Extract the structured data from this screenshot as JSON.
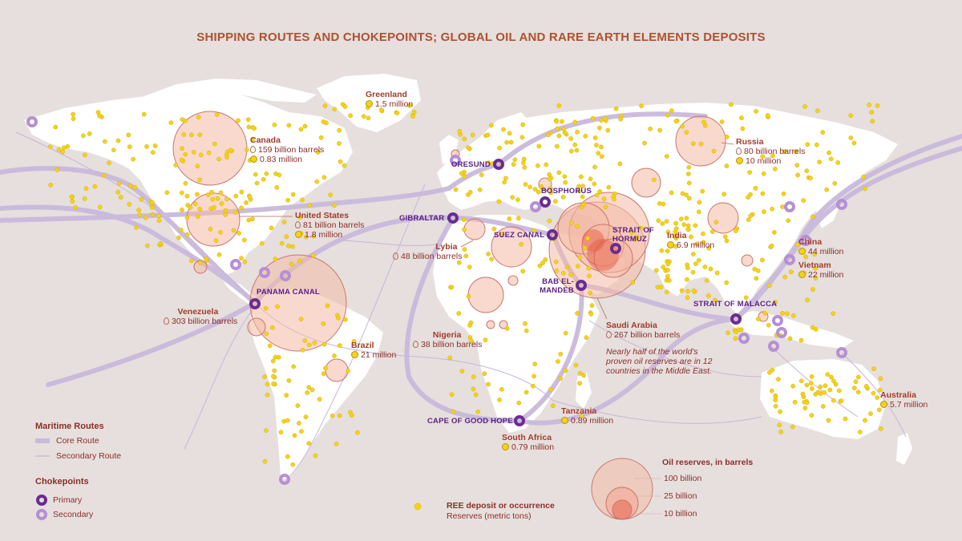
{
  "title": "SHIPPING ROUTES AND CHOKEPOINTS; GLOBAL OIL AND RARE EARTH ELEMENTS DEPOSITS",
  "colors": {
    "background": "#e6dfdd",
    "land": "#ffffff",
    "route": "#c9b9dc",
    "primary_chokepoint": "#6a2c91",
    "secondary_chokepoint": "#b68fd4",
    "oil_bubble": "#f4b9a6",
    "ree_dot": "#f5d21a",
    "label": "#a33c2c"
  },
  "countries": [
    {
      "id": "canada",
      "name": "Canada",
      "oil": "159 billion barrels",
      "ree": "0.83 million"
    },
    {
      "id": "greenland",
      "name": "Greenland",
      "ree": "1.5 million"
    },
    {
      "id": "russia",
      "name": "Russia",
      "oil": "80 billion barrels",
      "ree": "10 million"
    },
    {
      "id": "usa",
      "name": "United States",
      "oil": "81 billion barrels",
      "ree": "1.8 million"
    },
    {
      "id": "libya",
      "name": "Lybia",
      "oil": "48 billion barrels"
    },
    {
      "id": "india",
      "name": "India",
      "ree": "6.9 million"
    },
    {
      "id": "china",
      "name": "China",
      "ree": "44 million"
    },
    {
      "id": "vietnam",
      "name": "Vietnam",
      "ree": "22 million"
    },
    {
      "id": "venezuela",
      "name": "Venezuela",
      "oil": "303 billion barrels"
    },
    {
      "id": "brazil",
      "name": "Brazil",
      "ree": "21 million"
    },
    {
      "id": "nigeria",
      "name": "Nigeria",
      "oil": "38 billion barrels"
    },
    {
      "id": "saudi",
      "name": "Saudi Arabia",
      "oil": "267 billion barrels"
    },
    {
      "id": "tanzania",
      "name": "Tanzania",
      "ree": "0.89 million"
    },
    {
      "id": "southafrica",
      "name": "South Africa",
      "ree": "0.79 million"
    },
    {
      "id": "australia",
      "name": "Australia",
      "ree": "5.7 million"
    }
  ],
  "chokepoints": {
    "oresund": "ORESUND",
    "bosphorus": "BOSPHORUS",
    "gibraltar": "GIBRALTAR",
    "suez": "SUEZ CANAL",
    "hormuz": "STRAIT OF HORMUZ",
    "babelmandeb": "BAB EL-MANDEB",
    "panama": "PANAMA CANAL",
    "malacca": "STRAIT OF MALACCA",
    "goodhope": "CAPE OF GOOD HOPE"
  },
  "note": "Nearly half of the world's proven oil reserves are in 12 countries in the Middle East.",
  "legend": {
    "routes_title": "Maritime Routes",
    "core": "Core Route",
    "secondary": "Secondary Route",
    "chokepoints_title": "Chokepoints",
    "primary": "Primary",
    "secondary_cp": "Secondary",
    "ree_title": "REE deposit or occurrence",
    "ree_sub": "Reserves (metric tons)",
    "oil_title": "Oil reserves, in barrels",
    "oil_100": "100 billion",
    "oil_25": "25 billion",
    "oil_10": "10 billion"
  }
}
